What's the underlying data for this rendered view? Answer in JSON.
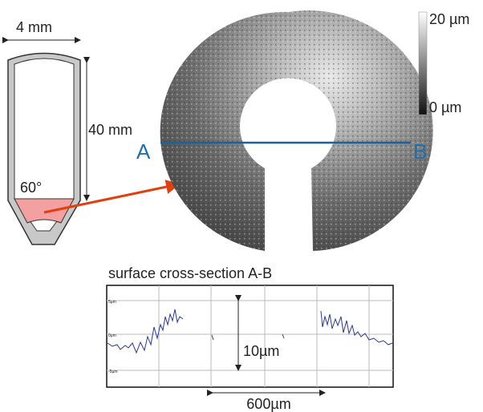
{
  "tube": {
    "width_label": "4 mm",
    "length_label": "40 mm",
    "angle_label": "60°"
  },
  "surface": {
    "label_a": "A",
    "label_b": "B",
    "scale_max": "20 µm",
    "scale_min": "0 µm"
  },
  "profile": {
    "title": "surface cross-section A-B",
    "y_labels": [
      "5µm",
      "0µm",
      "-5µm"
    ],
    "height_label": "10µm",
    "width_label": "600µm"
  }
}
